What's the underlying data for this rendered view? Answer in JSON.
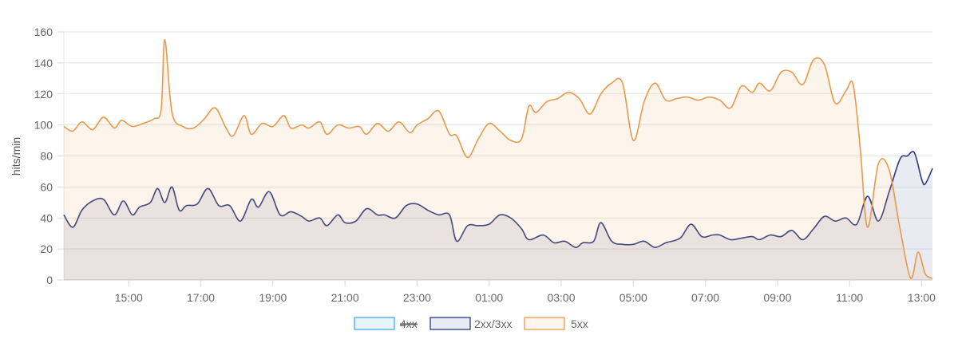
{
  "chart_data": {
    "type": "line",
    "ylabel": "hits/min",
    "ylim": [
      0,
      160
    ],
    "y_ticks": [
      "0",
      "20",
      "40",
      "60",
      "80",
      "100",
      "120",
      "140",
      "160"
    ],
    "x_range_hours": [
      13.2,
      13.1
    ],
    "x_ticks": [
      {
        "label": "15:00",
        "hour": 15
      },
      {
        "label": "17:00",
        "hour": 17
      },
      {
        "label": "19:00",
        "hour": 19
      },
      {
        "label": "21:00",
        "hour": 21
      },
      {
        "label": "23:00",
        "hour": 23
      },
      {
        "label": "01:00",
        "hour": 25
      },
      {
        "label": "03:00",
        "hour": 27
      },
      {
        "label": "05:00",
        "hour": 29
      },
      {
        "label": "07:00",
        "hour": 31
      },
      {
        "label": "09:00",
        "hour": 33
      },
      {
        "label": "11:00",
        "hour": 35
      },
      {
        "label": "13:00",
        "hour": 37
      }
    ],
    "grid": true,
    "legend_position": "bottom",
    "series": [
      {
        "name": "4xx",
        "hidden": true,
        "color": "#4aa8e8",
        "fill": "#e6f3fc",
        "points": []
      },
      {
        "name": "2xx/3xx",
        "hidden": false,
        "color": "#2b3a82",
        "fill": "rgba(43,58,130,0.10)",
        "points": [
          [
            13.2,
            42
          ],
          [
            13.45,
            34
          ],
          [
            13.7,
            45
          ],
          [
            14.0,
            51
          ],
          [
            14.3,
            52
          ],
          [
            14.6,
            42
          ],
          [
            14.85,
            51
          ],
          [
            15.1,
            42
          ],
          [
            15.3,
            47
          ],
          [
            15.6,
            50
          ],
          [
            15.8,
            59
          ],
          [
            16.0,
            50
          ],
          [
            16.2,
            60
          ],
          [
            16.4,
            45
          ],
          [
            16.6,
            48
          ],
          [
            16.9,
            49
          ],
          [
            17.2,
            59
          ],
          [
            17.5,
            48
          ],
          [
            17.8,
            48
          ],
          [
            18.1,
            38
          ],
          [
            18.4,
            52
          ],
          [
            18.6,
            47
          ],
          [
            18.9,
            57
          ],
          [
            19.2,
            42
          ],
          [
            19.5,
            44
          ],
          [
            19.8,
            41
          ],
          [
            20.0,
            38
          ],
          [
            20.3,
            40
          ],
          [
            20.5,
            35
          ],
          [
            20.8,
            42
          ],
          [
            21.0,
            37
          ],
          [
            21.3,
            38
          ],
          [
            21.6,
            46
          ],
          [
            21.9,
            42
          ],
          [
            22.1,
            42
          ],
          [
            22.4,
            40
          ],
          [
            22.7,
            48
          ],
          [
            23.0,
            49
          ],
          [
            23.3,
            45
          ],
          [
            23.6,
            42
          ],
          [
            23.9,
            42
          ],
          [
            24.1,
            25
          ],
          [
            24.4,
            35
          ],
          [
            24.7,
            35
          ],
          [
            25.0,
            36
          ],
          [
            25.3,
            42
          ],
          [
            25.6,
            40
          ],
          [
            25.9,
            33
          ],
          [
            26.1,
            26
          ],
          [
            26.5,
            29
          ],
          [
            26.8,
            24
          ],
          [
            27.1,
            25
          ],
          [
            27.4,
            21
          ],
          [
            27.6,
            24
          ],
          [
            27.9,
            25
          ],
          [
            28.1,
            37
          ],
          [
            28.4,
            25
          ],
          [
            28.7,
            23
          ],
          [
            29.0,
            23
          ],
          [
            29.3,
            25
          ],
          [
            29.6,
            21
          ],
          [
            29.9,
            24
          ],
          [
            30.3,
            27
          ],
          [
            30.6,
            36
          ],
          [
            30.9,
            28
          ],
          [
            31.2,
            29
          ],
          [
            31.4,
            29
          ],
          [
            31.7,
            26
          ],
          [
            32.0,
            27
          ],
          [
            32.3,
            28
          ],
          [
            32.5,
            26
          ],
          [
            32.8,
            29
          ],
          [
            33.1,
            28
          ],
          [
            33.4,
            32
          ],
          [
            33.7,
            26
          ],
          [
            34.0,
            33
          ],
          [
            34.3,
            41
          ],
          [
            34.6,
            38
          ],
          [
            34.9,
            40
          ],
          [
            35.2,
            36
          ],
          [
            35.5,
            54
          ],
          [
            35.8,
            38
          ],
          [
            36.1,
            57
          ],
          [
            36.4,
            78
          ],
          [
            36.6,
            80
          ],
          [
            36.8,
            82
          ],
          [
            37.0,
            65
          ],
          [
            37.1,
            62
          ],
          [
            37.3,
            72
          ]
        ]
      },
      {
        "name": "5xx",
        "hidden": false,
        "color": "#e89a4c",
        "fill": "rgba(240,170,100,0.13)",
        "points": [
          [
            13.2,
            99
          ],
          [
            13.45,
            96
          ],
          [
            13.7,
            102
          ],
          [
            14.0,
            97
          ],
          [
            14.3,
            105
          ],
          [
            14.6,
            98
          ],
          [
            14.8,
            103
          ],
          [
            15.1,
            99
          ],
          [
            15.4,
            101
          ],
          [
            15.7,
            104
          ],
          [
            15.9,
            110
          ],
          [
            16.0,
            155
          ],
          [
            16.2,
            108
          ],
          [
            16.5,
            99
          ],
          [
            16.8,
            98
          ],
          [
            17.1,
            104
          ],
          [
            17.4,
            111
          ],
          [
            17.7,
            98
          ],
          [
            17.9,
            93
          ],
          [
            18.2,
            106
          ],
          [
            18.4,
            94
          ],
          [
            18.7,
            101
          ],
          [
            19.0,
            99
          ],
          [
            19.3,
            106
          ],
          [
            19.5,
            98
          ],
          [
            19.8,
            100
          ],
          [
            20.0,
            98
          ],
          [
            20.3,
            102
          ],
          [
            20.5,
            94
          ],
          [
            20.8,
            100
          ],
          [
            21.1,
            98
          ],
          [
            21.4,
            99
          ],
          [
            21.6,
            94
          ],
          [
            21.9,
            101
          ],
          [
            22.2,
            96
          ],
          [
            22.5,
            102
          ],
          [
            22.8,
            95
          ],
          [
            23.0,
            100
          ],
          [
            23.3,
            104
          ],
          [
            23.6,
            109
          ],
          [
            23.9,
            94
          ],
          [
            24.1,
            93
          ],
          [
            24.4,
            79
          ],
          [
            24.7,
            91
          ],
          [
            25.0,
            101
          ],
          [
            25.3,
            96
          ],
          [
            25.6,
            90
          ],
          [
            25.9,
            91
          ],
          [
            26.1,
            112
          ],
          [
            26.3,
            108
          ],
          [
            26.6,
            115
          ],
          [
            26.9,
            117
          ],
          [
            27.2,
            121
          ],
          [
            27.5,
            117
          ],
          [
            27.8,
            107
          ],
          [
            28.1,
            120
          ],
          [
            28.4,
            127
          ],
          [
            28.7,
            127
          ],
          [
            29.0,
            90
          ],
          [
            29.3,
            115
          ],
          [
            29.6,
            127
          ],
          [
            29.9,
            116
          ],
          [
            30.2,
            117
          ],
          [
            30.5,
            118
          ],
          [
            30.8,
            116
          ],
          [
            31.1,
            118
          ],
          [
            31.4,
            116
          ],
          [
            31.7,
            111
          ],
          [
            32.0,
            125
          ],
          [
            32.3,
            121
          ],
          [
            32.5,
            127
          ],
          [
            32.8,
            122
          ],
          [
            33.1,
            134
          ],
          [
            33.4,
            134
          ],
          [
            33.7,
            126
          ],
          [
            34.0,
            142
          ],
          [
            34.3,
            139
          ],
          [
            34.6,
            114
          ],
          [
            34.9,
            122
          ],
          [
            35.1,
            126
          ],
          [
            35.3,
            84
          ],
          [
            35.5,
            34
          ],
          [
            35.8,
            75
          ],
          [
            36.1,
            71
          ],
          [
            36.4,
            33
          ],
          [
            36.7,
            1
          ],
          [
            36.9,
            18
          ],
          [
            37.1,
            4
          ],
          [
            37.3,
            1
          ]
        ]
      }
    ]
  }
}
